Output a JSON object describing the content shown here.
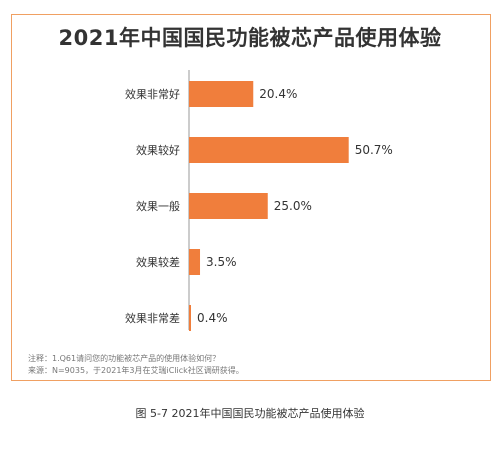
{
  "chart_data": {
    "type": "bar",
    "orientation": "horizontal",
    "title": "2021年中国国民功能被芯产品使用体验",
    "categories": [
      "效果非常好",
      "效果较好",
      "效果一般",
      "效果较差",
      "效果非常差"
    ],
    "values": [
      20.4,
      50.7,
      25.0,
      3.5,
      0.4
    ],
    "value_labels": [
      "20.4%",
      "50.7%",
      "25.0%",
      "3.5%",
      "0.4%"
    ],
    "unit": "%",
    "xlim": [
      0,
      60
    ],
    "grid": false,
    "legend": "none",
    "bar_color": "#f07e3c"
  },
  "notes": {
    "line1": "注释：1.Q61请问您的功能被芯产品的使用体验如何？",
    "line2": "来源：N=9035，于2021年3月在艾瑞iClick社区调研获得。"
  },
  "caption": "图 5-7 2021年中国国民功能被芯产品使用体验",
  "colors": {
    "border": "#f0a062",
    "bar": "#f07e3c",
    "axis": "#999999"
  }
}
